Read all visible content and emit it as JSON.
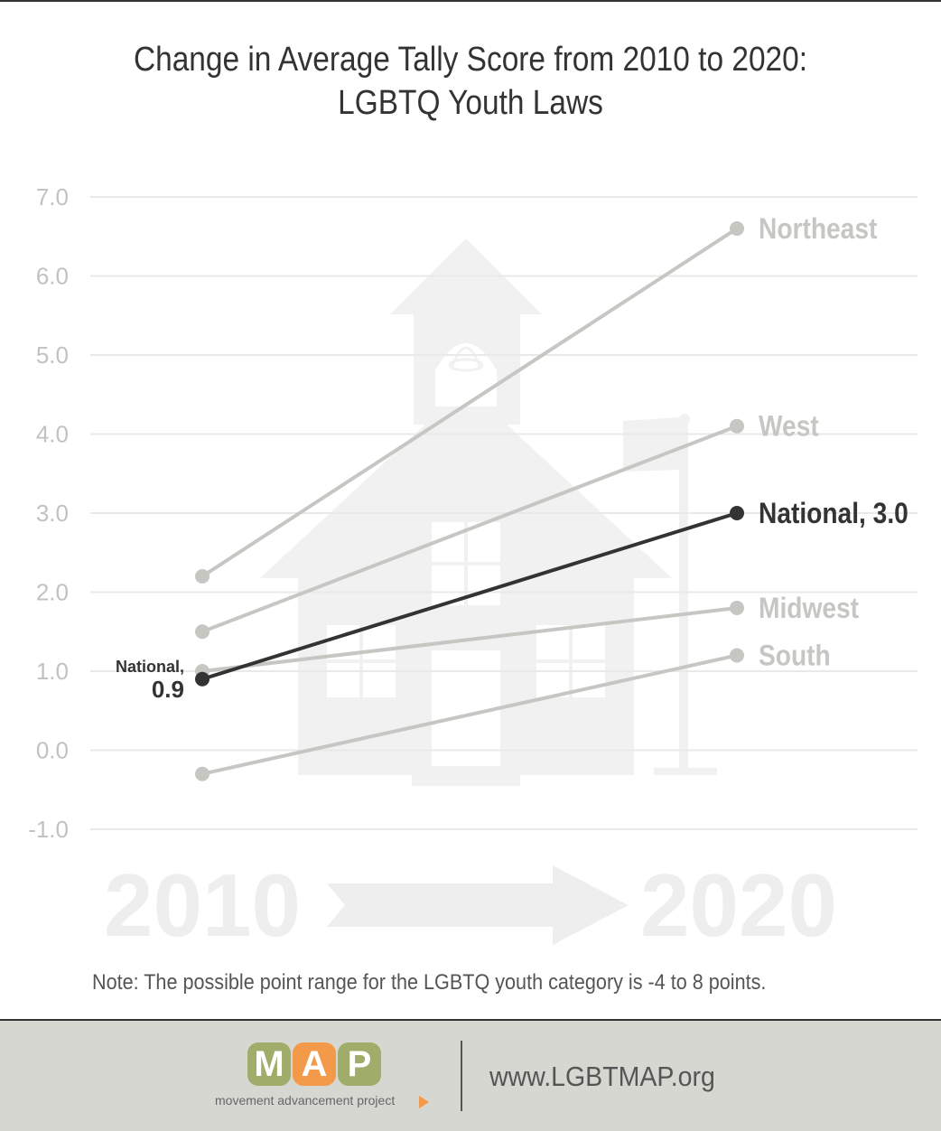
{
  "title": {
    "line1": "Change in Average Tally Score from 2010 to 2020:",
    "line2": "LGBTQ Youth Laws"
  },
  "chart_data": {
    "type": "line",
    "x": [
      "2010",
      "2020"
    ],
    "ylim": [
      -1.0,
      7.0
    ],
    "y_ticks": [
      "7.0",
      "6.0",
      "5.0",
      "4.0",
      "3.0",
      "2.0",
      "1.0",
      "0.0",
      "-1.0"
    ],
    "grid": true,
    "series": [
      {
        "name": "Northeast",
        "values": [
          2.2,
          6.6
        ],
        "color": "#c8c6c3",
        "label": "Northeast"
      },
      {
        "name": "West",
        "values": [
          1.5,
          4.1
        ],
        "color": "#c8c6c3",
        "label": "West"
      },
      {
        "name": "Midwest",
        "values": [
          1.0,
          1.8
        ],
        "color": "#c8c6c3",
        "label": "Midwest"
      },
      {
        "name": "South",
        "values": [
          -0.3,
          1.2
        ],
        "color": "#c8c6c3",
        "label": "South"
      },
      {
        "name": "National",
        "values": [
          0.9,
          3.0
        ],
        "color": "#333333",
        "label": "National, 3.0",
        "start_label_1": "National,",
        "start_label_2": "0.9"
      }
    ],
    "watermark_labels": [
      "2010",
      "2020"
    ]
  },
  "note": "Note: The possible point range for the LGBTQ youth category is -4 to 8 points.",
  "footer": {
    "logo_letters": [
      "M",
      "A",
      "P"
    ],
    "logo_tagline": "movement advancement project",
    "url": "www.LGBTMAP.org"
  },
  "colors": {
    "highlight": "#333333",
    "muted_series": "#c8c6c3",
    "axis_text": "#c2c2c2",
    "watermark": "#eeeeee",
    "footer_bg": "#d7d7d2",
    "logo_green": "#9fac6a",
    "logo_orange": "#f29a4a"
  }
}
